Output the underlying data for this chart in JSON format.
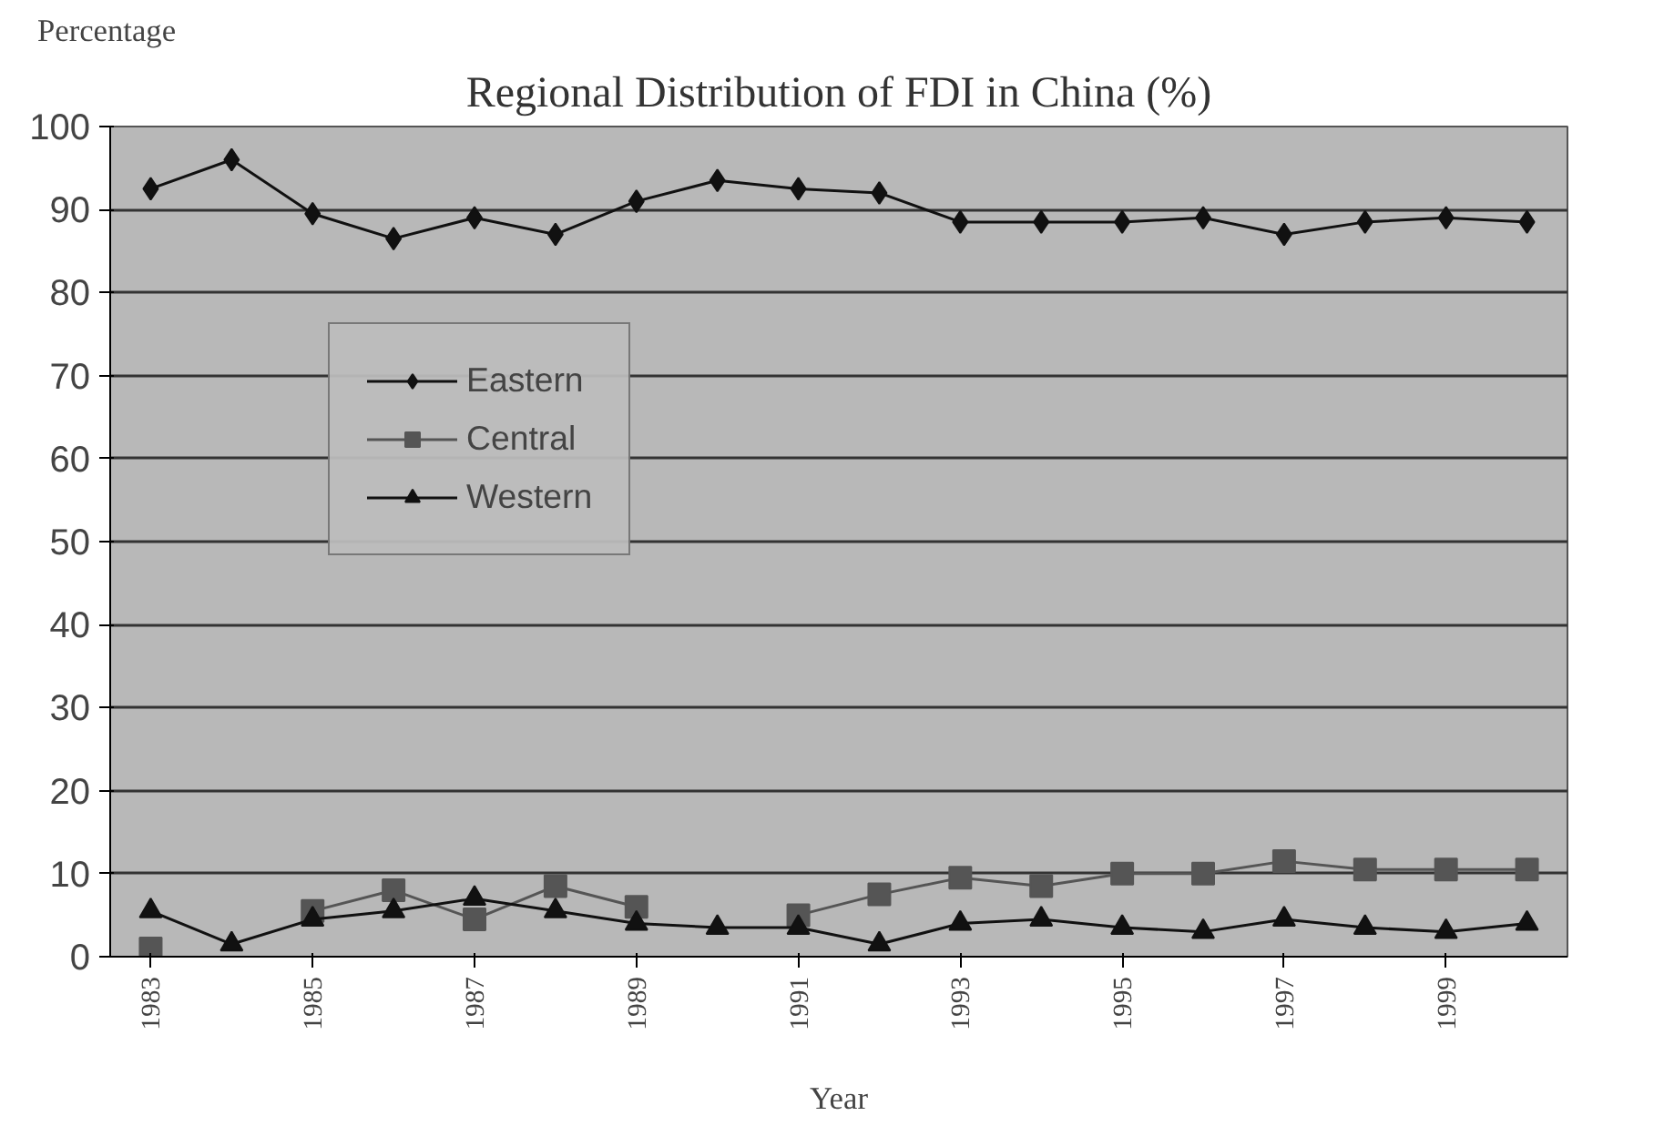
{
  "chart_data": {
    "type": "line",
    "title": "Regional Distribution of FDI in China (%)",
    "xlabel": "Year",
    "ylabel": "Percentage",
    "x": [
      1983,
      1984,
      1985,
      1986,
      1987,
      1988,
      1989,
      1990,
      1991,
      1992,
      1993,
      1994,
      1995,
      1996,
      1997,
      1998,
      1999,
      2000
    ],
    "series": [
      {
        "name": "Eastern",
        "color": "#111111",
        "marker": "diamond",
        "values": [
          92.5,
          96,
          89.5,
          86.5,
          89,
          87,
          91,
          93.5,
          92.5,
          92,
          88.5,
          88.5,
          88.5,
          89,
          87,
          88.5,
          89,
          88.5
        ]
      },
      {
        "name": "Central",
        "color": "#555555",
        "marker": "square",
        "values": [
          1,
          null,
          5.5,
          8,
          4.5,
          8.5,
          6,
          null,
          5,
          7.5,
          9.5,
          8.5,
          10,
          10,
          11.5,
          10.5,
          10.5,
          10.5
        ]
      },
      {
        "name": "Western",
        "color": "#111111",
        "marker": "triangle",
        "values": [
          5.5,
          1.5,
          4.5,
          5.5,
          7,
          5.5,
          4,
          3.5,
          3.5,
          1.5,
          4,
          4.5,
          3.5,
          3,
          4.5,
          3.5,
          3,
          4
        ]
      }
    ],
    "xlim": [
      1982.5,
      2000.5
    ],
    "ylim": [
      0,
      100
    ],
    "xticks": [
      1983,
      1985,
      1987,
      1989,
      1991,
      1993,
      1995,
      1997,
      1999
    ],
    "yticks": [
      0,
      10,
      20,
      30,
      40,
      50,
      60,
      70,
      80,
      90,
      100
    ],
    "grid": "y",
    "legend": "left",
    "line_style": "solid"
  }
}
